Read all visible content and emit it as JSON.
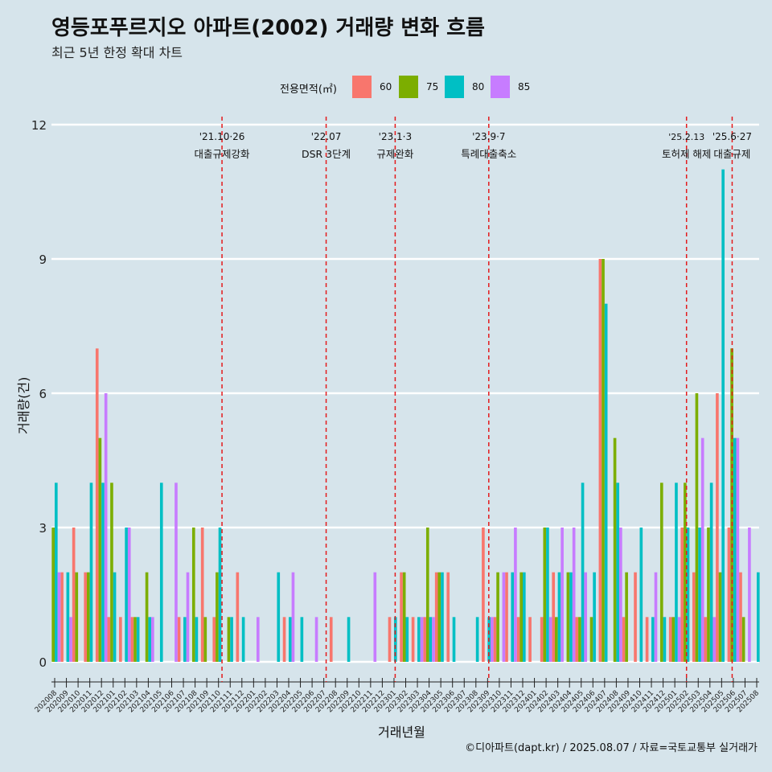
{
  "title": "영등포푸르지오 아파트(2002) 거래량 변화 흐름",
  "subtitle": "최근 5년 한정 확대 차트",
  "caption": "©디아파트(dapt.kr) / 2025.08.07 / 자료=국토교통부 실거래가",
  "legend": {
    "title": "전용면적(㎡)",
    "items": [
      {
        "label": "60",
        "color": "#f8766d"
      },
      {
        "label": "75",
        "color": "#7cae00"
      },
      {
        "label": "80",
        "color": "#00bfc4"
      },
      {
        "label": "85",
        "color": "#c77cff"
      }
    ]
  },
  "chart_data": {
    "type": "bar",
    "xlabel": "거래년월",
    "ylabel": "거래량(건)",
    "ylim": [
      0,
      12
    ],
    "yticks": [
      0,
      3,
      6,
      9,
      12
    ],
    "grid": true,
    "legend_position": "top",
    "categories": [
      "202008",
      "202009",
      "202010",
      "202011",
      "202012",
      "202101",
      "202102",
      "202103",
      "202104",
      "202105",
      "202106",
      "202107",
      "202108",
      "202109",
      "202110",
      "202111",
      "202112",
      "202201",
      "202202",
      "202203",
      "202204",
      "202205",
      "202206",
      "202207",
      "202208",
      "202209",
      "202210",
      "202211",
      "202212",
      "202301",
      "202302",
      "202303",
      "202304",
      "202305",
      "202306",
      "202307",
      "202308",
      "202309",
      "202310",
      "202311",
      "202312",
      "202401",
      "202402",
      "202403",
      "202404",
      "202405",
      "202406",
      "202407",
      "202408",
      "202409",
      "202410",
      "202411",
      "202412",
      "202501",
      "202502",
      "202503",
      "202504",
      "202505",
      "202506",
      "202507",
      "202508"
    ],
    "series": [
      {
        "name": "60",
        "values": [
          0,
          2,
          3,
          2,
          7,
          1,
          1,
          1,
          0,
          0,
          0,
          1,
          0,
          3,
          1,
          0,
          2,
          0,
          0,
          0,
          1,
          0,
          0,
          0,
          1,
          0,
          0,
          0,
          0,
          1,
          2,
          1,
          1,
          2,
          2,
          0,
          0,
          3,
          1,
          2,
          1,
          1,
          1,
          2,
          0,
          1,
          0,
          9,
          0,
          1,
          2,
          1,
          0,
          1,
          3,
          2,
          1,
          6,
          3,
          2,
          0
        ]
      },
      {
        "name": "75",
        "values": [
          3,
          0,
          2,
          2,
          5,
          4,
          0,
          1,
          2,
          0,
          0,
          0,
          3,
          1,
          2,
          1,
          0,
          0,
          0,
          0,
          0,
          0,
          0,
          0,
          0,
          0,
          0,
          0,
          0,
          0,
          2,
          0,
          3,
          2,
          0,
          0,
          0,
          0,
          2,
          0,
          2,
          0,
          3,
          1,
          2,
          1,
          1,
          9,
          5,
          2,
          0,
          0,
          4,
          1,
          4,
          6,
          3,
          2,
          7,
          1,
          0
        ]
      },
      {
        "name": "80",
        "values": [
          4,
          2,
          0,
          4,
          4,
          2,
          3,
          1,
          1,
          4,
          0,
          1,
          1,
          0,
          3,
          1,
          1,
          0,
          0,
          2,
          1,
          1,
          0,
          0,
          0,
          1,
          0,
          0,
          0,
          1,
          1,
          1,
          1,
          2,
          1,
          0,
          1,
          1,
          0,
          2,
          2,
          0,
          3,
          2,
          2,
          4,
          2,
          8,
          4,
          0,
          3,
          1,
          1,
          4,
          3,
          3,
          4,
          11,
          5,
          0,
          2
        ]
      },
      {
        "name": "85",
        "values": [
          2,
          1,
          0,
          0,
          6,
          0,
          3,
          0,
          1,
          0,
          4,
          2,
          0,
          0,
          0,
          0,
          0,
          1,
          0,
          0,
          2,
          0,
          1,
          0,
          0,
          0,
          0,
          2,
          0,
          0,
          0,
          1,
          1,
          0,
          0,
          0,
          0,
          1,
          2,
          3,
          0,
          0,
          1,
          3,
          3,
          2,
          0,
          0,
          3,
          0,
          0,
          2,
          0,
          1,
          0,
          5,
          1,
          0,
          5,
          3,
          0
        ]
      }
    ],
    "events": [
      {
        "date": "'21.10·26",
        "label": "대출규제강화",
        "x_index": 14.3
      },
      {
        "date": "'22.07",
        "label": "DSR 3단계",
        "x_index": 23.2
      },
      {
        "date": "'23.1·3",
        "label": "규제완화",
        "x_index": 29.1
      },
      {
        "date": "'23.9·7",
        "label": "특례대출축소",
        "x_index": 37.1
      },
      {
        "date": "'25.2.13",
        "label": "토허제 해제",
        "x_index": 54.0
      },
      {
        "date": "'25.6·27",
        "label": "대출규제",
        "x_index": 57.9
      }
    ]
  }
}
